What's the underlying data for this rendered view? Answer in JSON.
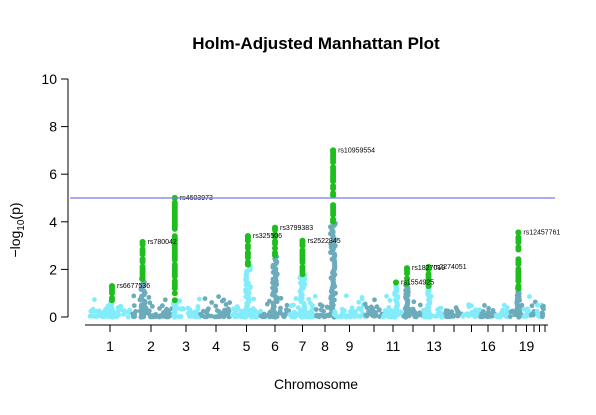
{
  "chart_data": {
    "type": "scatter",
    "title": "Holm-Adjusted Manhattan Plot",
    "xlabel": "Chromosome",
    "ylabel": "−log",
    "ylabel_sub": "10",
    "ylabel_tail": "(p)",
    "ylim": [
      0,
      10
    ],
    "yticks": [
      0,
      2,
      4,
      6,
      8,
      10
    ],
    "threshold": 5,
    "grid": false,
    "colors": {
      "chrom_odd": "#82ecfa",
      "chrom_even": "#6cabbb",
      "significant": "#1fbe1f",
      "threshold": "#7b7be6",
      "axis": "#000000"
    },
    "chromosomes": [
      {
        "chr": "1",
        "label": "1"
      },
      {
        "chr": "2",
        "label": "2"
      },
      {
        "chr": "3",
        "label": "3"
      },
      {
        "chr": "4",
        "label": "4"
      },
      {
        "chr": "5",
        "label": "5"
      },
      {
        "chr": "6",
        "label": "6"
      },
      {
        "chr": "7",
        "label": "7"
      },
      {
        "chr": "8",
        "label": "8"
      },
      {
        "chr": "9",
        "label": "9"
      },
      {
        "chr": "10",
        "label": ""
      },
      {
        "chr": "11",
        "label": "11"
      },
      {
        "chr": "12",
        "label": ""
      },
      {
        "chr": "13",
        "label": "13"
      },
      {
        "chr": "14",
        "label": ""
      },
      {
        "chr": "15",
        "label": ""
      },
      {
        "chr": "16",
        "label": "16"
      },
      {
        "chr": "17",
        "label": ""
      },
      {
        "chr": "18",
        "label": ""
      },
      {
        "chr": "19",
        "label": "19"
      },
      {
        "chr": "20",
        "label": ""
      },
      {
        "chr": "21",
        "label": ""
      },
      {
        "chr": "22",
        "label": ""
      }
    ],
    "peaks": [
      {
        "chr": "1",
        "pos": 0.55,
        "base_max": 0.6,
        "top": 1.3,
        "snp": "rs6677536"
      },
      {
        "chr": "2",
        "pos": 0.3,
        "base_max": 1.6,
        "top": 3.15,
        "snp": "rs780042"
      },
      {
        "chr": "3",
        "pos": 0.1,
        "base_max": 0.7,
        "top": 5.0,
        "snp": "rs4603973"
      },
      {
        "chr": "5",
        "pos": 0.55,
        "base_max": 2.2,
        "top": 3.4,
        "snp": "rs325506"
      },
      {
        "chr": "6",
        "pos": 0.5,
        "base_max": 2.6,
        "top": 3.75,
        "snp": "rs3799383"
      },
      {
        "chr": "7",
        "pos": 0.5,
        "base_max": 1.8,
        "top": 3.2,
        "snp": "rs2522845"
      },
      {
        "chr": "8",
        "pos": 0.95,
        "base_max": 4.0,
        "top": 7.0,
        "snp": "rs10959554"
      },
      {
        "chr": "11",
        "pos": 0.65,
        "base_max": 1.3,
        "top": 1.45,
        "snp": "rs1554925"
      },
      {
        "chr": "12",
        "pos": 0.2,
        "base_max": 1.4,
        "top": 2.05,
        "snp": "rs1827019"
      },
      {
        "chr": "13",
        "pos": 0.25,
        "base_max": 1.3,
        "top": 2.1,
        "snp": "rs2274051"
      },
      {
        "chr": "18",
        "pos": 0.7,
        "base_max": 1.2,
        "top": 3.55,
        "snp": "rs12457761"
      }
    ]
  }
}
